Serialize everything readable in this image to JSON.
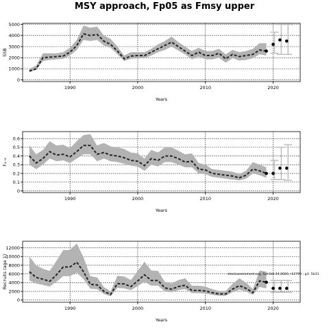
{
  "title": "MSY approach, Fp05 as Fmsy upper",
  "note": "stockassessment.org, Sat Oct 24 2020, r12799 ; git: 5b33",
  "colors": {
    "band": "#b3b3b3",
    "line": "#222222",
    "grid": "#000000",
    "forecast": "#bdbdbd"
  },
  "chart_data": [
    {
      "type": "area",
      "name": "ssb-panel",
      "xlabel": "Years",
      "ylabel": "SSB",
      "xlim": [
        1983,
        2024
      ],
      "ylim": [
        -150,
        5100
      ],
      "xticks": [
        1990,
        2000,
        2010,
        2020
      ],
      "yticks": [
        0,
        1000,
        2000,
        3000,
        4000,
        5000
      ],
      "x": [
        1984,
        1985,
        1986,
        1987,
        1988,
        1989,
        1990,
        1991,
        1992,
        1993,
        1994,
        1995,
        1996,
        1997,
        1998,
        1999,
        2000,
        2001,
        2002,
        2003,
        2004,
        2005,
        2006,
        2007,
        2008,
        2009,
        2010,
        2011,
        2012,
        2013,
        2014,
        2015,
        2016,
        2017,
        2018,
        2019
      ],
      "estimate": [
        800,
        1000,
        2000,
        2050,
        2100,
        2150,
        2500,
        3100,
        4150,
        4000,
        4100,
        3500,
        3200,
        2600,
        1900,
        2150,
        2200,
        2200,
        2500,
        2800,
        3100,
        3400,
        3000,
        2600,
        2200,
        2500,
        2200,
        2200,
        2400,
        1900,
        2300,
        2100,
        2200,
        2300,
        2700,
        2600
      ],
      "lower": [
        700,
        900,
        1700,
        1800,
        1850,
        1900,
        2200,
        2700,
        3600,
        3500,
        3600,
        3100,
        2900,
        2300,
        1700,
        1900,
        1950,
        1950,
        2200,
        2500,
        2700,
        3000,
        2650,
        2300,
        1850,
        2100,
        1850,
        1850,
        2000,
        1550,
        1950,
        1750,
        1800,
        1950,
        2300,
        2200
      ],
      "upper": [
        1000,
        1300,
        2400,
        2400,
        2400,
        2500,
        2900,
        3600,
        4900,
        4700,
        4800,
        4000,
        3700,
        3000,
        2200,
        2500,
        2500,
        2500,
        2800,
        3200,
        3500,
        3900,
        3400,
        3000,
        2600,
        2900,
        2600,
        2600,
        2800,
        2300,
        2700,
        2500,
        2600,
        2800,
        3300,
        3300
      ],
      "forecast": [
        {
          "x": 2020,
          "value": 3200,
          "low": 2400,
          "high": 4300
        },
        {
          "x": 2021,
          "value": 3600,
          "low": 2300,
          "high": 5000
        },
        {
          "x": 2022,
          "value": 3500,
          "low": 2300,
          "high": 5000
        }
      ]
    },
    {
      "type": "area",
      "name": "f-panel",
      "xlabel": "Years",
      "ylabel": "F₄₋₈",
      "xlim": [
        1983,
        2024
      ],
      "ylim": [
        -0.02,
        0.68
      ],
      "xticks": [
        1990,
        2000,
        2010,
        2020
      ],
      "yticks": [
        0,
        0.1,
        0.2,
        0.3,
        0.4,
        0.5,
        0.6
      ],
      "x": [
        1984,
        1985,
        1986,
        1987,
        1988,
        1989,
        1990,
        1991,
        1992,
        1993,
        1994,
        1995,
        1996,
        1997,
        1998,
        1999,
        2000,
        2001,
        2002,
        2003,
        2004,
        2005,
        2006,
        2007,
        2008,
        2009,
        2010,
        2011,
        2012,
        2013,
        2014,
        2015,
        2016,
        2017,
        2018,
        2019
      ],
      "estimate": [
        0.4,
        0.32,
        0.37,
        0.45,
        0.41,
        0.42,
        0.39,
        0.45,
        0.52,
        0.52,
        0.42,
        0.44,
        0.41,
        0.4,
        0.38,
        0.35,
        0.34,
        0.29,
        0.37,
        0.35,
        0.4,
        0.4,
        0.37,
        0.33,
        0.34,
        0.25,
        0.24,
        0.2,
        0.19,
        0.18,
        0.17,
        0.15,
        0.18,
        0.25,
        0.23,
        0.2
      ],
      "lower": [
        0.3,
        0.25,
        0.3,
        0.37,
        0.34,
        0.35,
        0.32,
        0.37,
        0.42,
        0.42,
        0.34,
        0.37,
        0.34,
        0.33,
        0.31,
        0.29,
        0.28,
        0.23,
        0.3,
        0.28,
        0.33,
        0.33,
        0.3,
        0.27,
        0.27,
        0.2,
        0.19,
        0.16,
        0.15,
        0.14,
        0.13,
        0.12,
        0.14,
        0.2,
        0.18,
        0.15
      ],
      "upper": [
        0.52,
        0.42,
        0.47,
        0.57,
        0.52,
        0.53,
        0.49,
        0.57,
        0.64,
        0.65,
        0.52,
        0.55,
        0.51,
        0.5,
        0.48,
        0.44,
        0.43,
        0.37,
        0.47,
        0.44,
        0.5,
        0.5,
        0.46,
        0.42,
        0.43,
        0.32,
        0.3,
        0.25,
        0.24,
        0.23,
        0.22,
        0.19,
        0.23,
        0.33,
        0.3,
        0.27
      ],
      "forecast": [
        {
          "x": 2020,
          "value": 0.2,
          "low": 0.13,
          "high": 0.35
        },
        {
          "x": 2021,
          "value": 0.26,
          "low": 0.13,
          "high": 0.5
        },
        {
          "x": 2022,
          "value": 0.26,
          "low": 0.12,
          "high": 0.53
        }
      ]
    },
    {
      "type": "area",
      "name": "recruits-panel",
      "xlabel": "Years",
      "ylabel": "Recruits (age 1)",
      "xlim": [
        1983,
        2024
      ],
      "ylim": [
        -500,
        13500
      ],
      "xticks": [
        1990,
        2000,
        2010,
        2020
      ],
      "yticks": [
        0,
        2000,
        4000,
        6000,
        8000,
        10000,
        12000
      ],
      "x": [
        1984,
        1985,
        1986,
        1987,
        1988,
        1989,
        1990,
        1991,
        1992,
        1993,
        1994,
        1995,
        1996,
        1997,
        1998,
        1999,
        2000,
        2001,
        2002,
        2003,
        2004,
        2005,
        2006,
        2007,
        2008,
        2009,
        2010,
        2011,
        2012,
        2013,
        2014,
        2015,
        2016,
        2017,
        2018,
        2019
      ],
      "estimate": [
        6500,
        5200,
        4800,
        4300,
        5800,
        7600,
        7600,
        8700,
        6500,
        3600,
        3500,
        2000,
        1300,
        3800,
        3700,
        3100,
        4400,
        5800,
        4500,
        4500,
        2800,
        2500,
        3100,
        3400,
        2200,
        2200,
        2100,
        1700,
        1400,
        1400,
        2500,
        3300,
        2700,
        1700,
        4400,
        4100
      ],
      "lower": [
        4500,
        3800,
        3500,
        3100,
        4200,
        5500,
        5500,
        6300,
        4800,
        2600,
        2500,
        1400,
        900,
        2800,
        2700,
        2300,
        3200,
        4200,
        3300,
        3300,
        2000,
        1800,
        2300,
        2500,
        1600,
        1600,
        1500,
        1200,
        1000,
        1000,
        1800,
        2400,
        2000,
        1200,
        3000,
        2700
      ],
      "upper": [
        10000,
        8000,
        7200,
        6700,
        9000,
        11500,
        11500,
        13000,
        9800,
        5500,
        5200,
        3000,
        2000,
        5600,
        5400,
        4600,
        6700,
        8800,
        6800,
        6700,
        4200,
        3800,
        4600,
        5000,
        3300,
        3300,
        3100,
        2500,
        2100,
        2100,
        3700,
        5000,
        4000,
        2500,
        6800,
        6500
      ],
      "forecast": [
        {
          "x": 2020,
          "value": 2700,
          "low": 1800,
          "high": 4500
        },
        {
          "x": 2021,
          "value": 2700,
          "low": 1800,
          "high": 4500
        },
        {
          "x": 2022,
          "value": 2700,
          "low": 1800,
          "high": 4500
        }
      ]
    }
  ]
}
